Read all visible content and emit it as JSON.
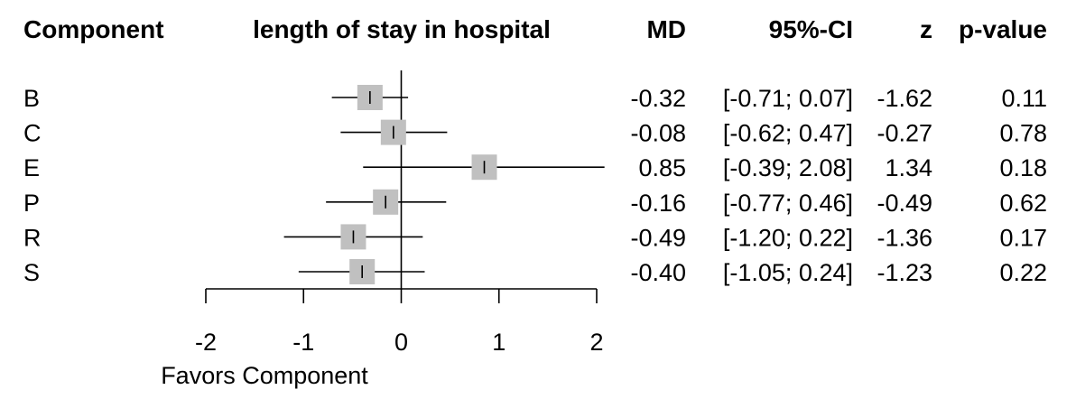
{
  "headers": {
    "component": "Component",
    "plot_title": "length of stay in hospital",
    "md": "MD",
    "ci": "95%-CI",
    "z": "z",
    "p": "p-value"
  },
  "chart_data": {
    "type": "forest",
    "title": "length of stay in hospital",
    "xlabel": "Favors Component",
    "xlim": [
      -2,
      2
    ],
    "xticks": [
      -2,
      -1,
      0,
      1,
      2
    ],
    "xtick_labels": [
      "-2",
      "-1",
      "0",
      "1",
      "2"
    ],
    "null_line": 0,
    "box_color": "#c0c0c0",
    "rows": [
      {
        "label": "B",
        "md": -0.32,
        "lower": -0.71,
        "upper": 0.07,
        "md_text": "-0.32",
        "ci_text": "[-0.71; 0.07]",
        "z_text": "-1.62",
        "p_text": "0.11"
      },
      {
        "label": "C",
        "md": -0.08,
        "lower": -0.62,
        "upper": 0.47,
        "md_text": "-0.08",
        "ci_text": "[-0.62; 0.47]",
        "z_text": "-0.27",
        "p_text": "0.78"
      },
      {
        "label": "E",
        "md": 0.85,
        "lower": -0.39,
        "upper": 2.08,
        "md_text": "0.85",
        "ci_text": "[-0.39; 2.08]",
        "z_text": "1.34",
        "p_text": "0.18"
      },
      {
        "label": "P",
        "md": -0.16,
        "lower": -0.77,
        "upper": 0.46,
        "md_text": "-0.16",
        "ci_text": "[-0.77; 0.46]",
        "z_text": "-0.49",
        "p_text": "0.62"
      },
      {
        "label": "R",
        "md": -0.49,
        "lower": -1.2,
        "upper": 0.22,
        "md_text": "-0.49",
        "ci_text": "[-1.20; 0.22]",
        "z_text": "-1.36",
        "p_text": "0.17"
      },
      {
        "label": "S",
        "md": -0.4,
        "lower": -1.05,
        "upper": 0.24,
        "md_text": "-0.40",
        "ci_text": "[-1.05; 0.24]",
        "z_text": "-1.23",
        "p_text": "0.22"
      }
    ]
  }
}
